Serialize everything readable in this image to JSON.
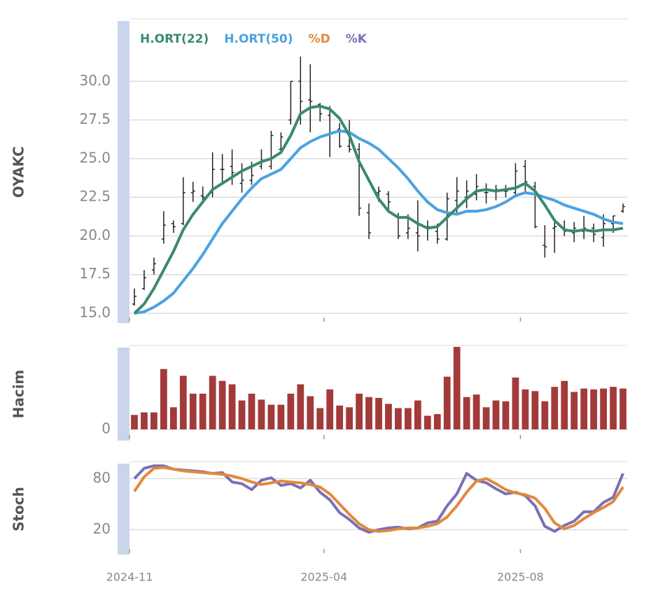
{
  "chart_data": [
    {
      "type": "ohlc",
      "ylabel": "OYAKC",
      "color": "#222222",
      "open": [
        15.6,
        16.6,
        17.8,
        19.8,
        20.8,
        20.8,
        22.8,
        22.6,
        22.8,
        24.3,
        24.5,
        23.4,
        23.6,
        24.5,
        24.5,
        25.6,
        27.5,
        30.0,
        28.8,
        28.5,
        27.8,
        26.9,
        25.8,
        25.6,
        21.5,
        22.8,
        22.7,
        21.2,
        20.2,
        20.2,
        20.5,
        20.3,
        19.8,
        22.3,
        22.5,
        22.7,
        22.8,
        22.9,
        22.9,
        22.8,
        24.5,
        23.2,
        19.4,
        20.5,
        20.5,
        20.2,
        20.3,
        20.5,
        19.9,
        20.8,
        21.6
      ],
      "high": [
        16.6,
        17.8,
        18.6,
        21.6,
        21.0,
        23.8,
        23.5,
        23.2,
        25.4,
        25.3,
        25.6,
        24.7,
        24.8,
        25.6,
        26.8,
        26.7,
        30.0,
        31.6,
        31.1,
        28.6,
        28.4,
        27.3,
        27.5,
        26.0,
        22.1,
        23.2,
        22.9,
        21.5,
        21.4,
        22.3,
        21.0,
        20.8,
        22.8,
        23.8,
        23.6,
        24.0,
        23.4,
        23.3,
        23.3,
        24.7,
        24.9,
        23.5,
        20.7,
        20.9,
        21.0,
        20.9,
        21.3,
        20.8,
        21.4,
        21.3,
        22.1
      ],
      "low": [
        15.5,
        16.5,
        17.5,
        19.5,
        20.2,
        20.7,
        22.2,
        22.3,
        22.5,
        23.5,
        23.3,
        22.8,
        23.3,
        24.3,
        24.3,
        25.3,
        27.2,
        27.2,
        26.7,
        27.4,
        25.1,
        25.7,
        25.4,
        21.3,
        19.8,
        22.2,
        21.5,
        19.8,
        19.8,
        19.0,
        19.7,
        19.5,
        19.7,
        21.4,
        21.8,
        22.3,
        22.1,
        22.3,
        22.5,
        22.5,
        22.8,
        20.5,
        18.6,
        18.9,
        20.0,
        19.6,
        19.8,
        19.6,
        19.3,
        20.2,
        21.5
      ],
      "close": [
        16.1,
        17.3,
        18.2,
        20.7,
        20.6,
        22.8,
        22.9,
        22.5,
        24.3,
        24.3,
        24.1,
        23.6,
        23.9,
        24.9,
        26.5,
        26.4,
        30.0,
        28.7,
        28.7,
        27.9,
        26.7,
        25.8,
        25.6,
        21.8,
        20.2,
        22.9,
        22.2,
        20.0,
        20.5,
        20.0,
        20.6,
        19.8,
        22.4,
        22.9,
        22.9,
        23.2,
        22.8,
        23.0,
        22.9,
        24.2,
        23.5,
        20.6,
        19.3,
        20.6,
        20.3,
        20.5,
        20.5,
        20.1,
        20.8,
        21.3,
        21.9
      ],
      "series": [
        {
          "name": "H.ORT(22)",
          "color": "#3a8a6e",
          "values": [
            15.0,
            15.6,
            16.6,
            17.8,
            19.0,
            20.4,
            21.4,
            22.2,
            23.0,
            23.4,
            23.8,
            24.2,
            24.5,
            24.8,
            25.0,
            25.4,
            26.5,
            27.9,
            28.3,
            28.4,
            28.2,
            27.6,
            26.5,
            24.8,
            23.6,
            22.4,
            21.6,
            21.2,
            21.2,
            20.8,
            20.5,
            20.6,
            21.2,
            21.8,
            22.4,
            22.9,
            23.0,
            22.9,
            23.0,
            23.1,
            23.4,
            22.9,
            22.0,
            21.0,
            20.4,
            20.3,
            20.4,
            20.3,
            20.4,
            20.4,
            20.5
          ]
        },
        {
          "name": "H.ORT(50)",
          "color": "#4aa3df",
          "values": [
            15.0,
            15.1,
            15.4,
            15.8,
            16.3,
            17.1,
            17.9,
            18.8,
            19.8,
            20.8,
            21.6,
            22.4,
            23.1,
            23.7,
            24.0,
            24.3,
            25.0,
            25.7,
            26.1,
            26.4,
            26.6,
            26.8,
            26.7,
            26.3,
            26.0,
            25.6,
            25.0,
            24.4,
            23.7,
            22.9,
            22.2,
            21.7,
            21.5,
            21.4,
            21.6,
            21.6,
            21.7,
            21.9,
            22.2,
            22.6,
            22.8,
            22.7,
            22.5,
            22.3,
            22.0,
            21.8,
            21.6,
            21.4,
            21.1,
            20.9,
            20.8
          ]
        }
      ],
      "xlim": [
        -0.5,
        50.5
      ],
      "ylim": [
        15,
        33.9
      ],
      "yticks": [
        {
          "value": 15,
          "label": "15.0"
        },
        17.5,
        {
          "value": 20,
          "label": "20.0"
        },
        22.5,
        {
          "value": 25,
          "label": "25.0"
        },
        27.5,
        {
          "value": 30,
          "label": "30.0"
        }
      ],
      "grid": true
    },
    {
      "type": "bar",
      "ylabel": "Hacim",
      "color": "#a33a3a",
      "values": [
        17,
        20,
        20,
        71,
        26,
        63,
        42,
        42,
        63,
        57,
        53,
        34,
        42,
        35,
        29,
        29,
        42,
        53,
        39,
        25,
        47,
        28,
        26,
        42,
        38,
        37,
        30,
        25,
        25,
        34,
        16,
        18,
        62,
        97,
        38,
        41,
        26,
        34,
        33,
        61,
        47,
        45,
        33,
        50,
        57,
        44,
        48,
        47,
        48,
        50,
        48
      ],
      "xlim": [
        -0.5,
        50.5
      ],
      "ylim": [
        0,
        100
      ],
      "yticks": [
        0
      ],
      "grid": true
    },
    {
      "type": "line",
      "ylabel": "Stoch",
      "series": [
        {
          "name": "%D",
          "color": "#e08a3c",
          "values": [
            65,
            82,
            92,
            93,
            91,
            89,
            88,
            87,
            86,
            85,
            83,
            80,
            76,
            73,
            75,
            77,
            76,
            75,
            73,
            70,
            62,
            50,
            38,
            27,
            20,
            18,
            19,
            21,
            22,
            22,
            24,
            27,
            35,
            48,
            64,
            77,
            80,
            74,
            67,
            63,
            61,
            57,
            45,
            28,
            21,
            25,
            33,
            40,
            46,
            53,
            70
          ]
        },
        {
          "name": "%K",
          "color": "#7b6fb8",
          "values": [
            80,
            92,
            95,
            95,
            91,
            90,
            89,
            88,
            86,
            87,
            76,
            74,
            67,
            78,
            81,
            72,
            74,
            69,
            78,
            64,
            55,
            40,
            32,
            22,
            17,
            20,
            22,
            23,
            21,
            22,
            28,
            30,
            48,
            62,
            86,
            78,
            75,
            68,
            62,
            64,
            60,
            48,
            24,
            18,
            25,
            30,
            41,
            41,
            52,
            58,
            86
          ]
        }
      ],
      "xlim": [
        -0.5,
        50.5
      ],
      "ylim": [
        -10,
        100
      ],
      "yticks": [
        20,
        80
      ],
      "grid": true,
      "xticks": [
        {
          "value": -0.5,
          "label": "2024-11"
        },
        {
          "value": 19.4,
          "label": "2025-04"
        },
        {
          "value": 39.5,
          "label": "2025-08"
        }
      ]
    }
  ]
}
